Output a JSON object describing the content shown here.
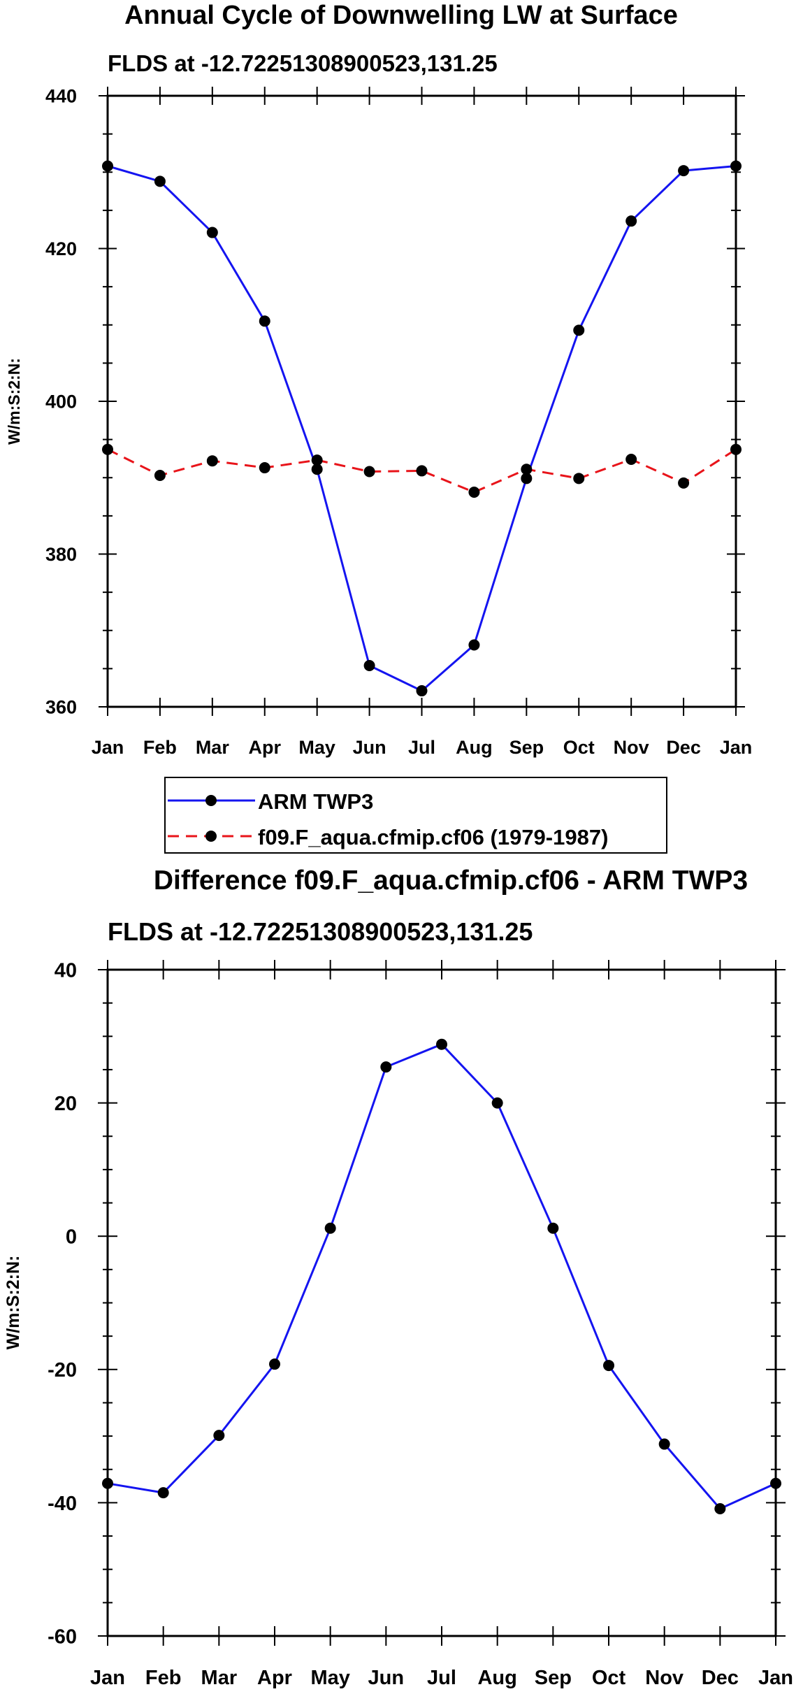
{
  "chart_data": [
    {
      "type": "line",
      "title": "Annual Cycle of Downwelling LW at Surface",
      "subtitle": "FLDS at -12.72251308900523,131.25",
      "xlabel": "",
      "ylabel": "W/m:S:2:N:",
      "categories": [
        "Jan",
        "Feb",
        "Mar",
        "Apr",
        "May",
        "Jun",
        "Jul",
        "Aug",
        "Sep",
        "Oct",
        "Nov",
        "Dec",
        "Jan"
      ],
      "ylim": [
        360,
        440
      ],
      "yticks": [
        360,
        380,
        400,
        420,
        440
      ],
      "yticks_minor_step": 5,
      "legend": {
        "placement": "below-plot",
        "entries": [
          "ARM TWP3",
          "f09.F_aqua.cfmip.cf06 (1979-1987)"
        ]
      },
      "series": [
        {
          "name": "ARM TWP3",
          "color": "#1414f0",
          "dash": "solid",
          "values": [
            430.8,
            428.8,
            422.1,
            410.5,
            391.1,
            365.4,
            362.1,
            368.1,
            389.9,
            409.3,
            423.6,
            430.2,
            430.8
          ]
        },
        {
          "name": "f09.F_aqua.cfmip.cf06 (1979-1987)",
          "color": "#e8141a",
          "dash": "dashed",
          "values": [
            393.7,
            390.3,
            392.2,
            391.3,
            392.3,
            390.8,
            390.9,
            388.1,
            391.1,
            389.9,
            392.4,
            389.3,
            393.7
          ]
        }
      ]
    },
    {
      "type": "line",
      "title": "Difference f09.F_aqua.cfmip.cf06 - ARM TWP3",
      "subtitle": "FLDS at -12.72251308900523,131.25",
      "xlabel": "",
      "ylabel": "W/m:S:2:N:",
      "categories": [
        "Jan",
        "Feb",
        "Mar",
        "Apr",
        "May",
        "Jun",
        "Jul",
        "Aug",
        "Sep",
        "Oct",
        "Nov",
        "Dec",
        "Jan"
      ],
      "ylim": [
        -60,
        40
      ],
      "yticks": [
        -60,
        -40,
        -20,
        0,
        20,
        40
      ],
      "yticks_minor_step": 5,
      "series": [
        {
          "name": "Difference",
          "color": "#1414f0",
          "dash": "solid",
          "values": [
            -37.1,
            -38.5,
            -29.9,
            -19.2,
            1.2,
            25.4,
            28.8,
            20.0,
            1.2,
            -19.4,
            -31.2,
            -40.9,
            -37.1
          ]
        }
      ]
    }
  ]
}
